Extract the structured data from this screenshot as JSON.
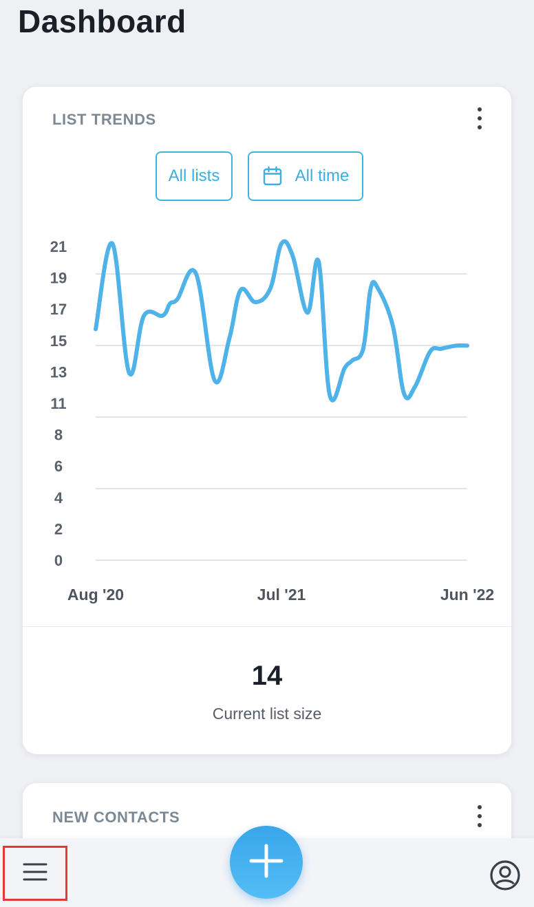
{
  "header": {
    "title": "Dashboard"
  },
  "list_trends": {
    "title": "LIST TRENDS",
    "filters": {
      "lists_label": "All lists",
      "time_label": "All time"
    },
    "stat": {
      "value": "14",
      "label": "Current list size"
    },
    "chart_data": {
      "type": "line",
      "line_color": "#4fb3ea",
      "grid": true,
      "y_tick_labels": [
        "21",
        "19",
        "17",
        "15",
        "13",
        "11",
        "8",
        "6",
        "4",
        "2",
        "0"
      ],
      "x_tick_labels": [
        "Aug '20",
        "Jul '21",
        "Jun '22"
      ],
      "ylim": [
        0,
        21
      ],
      "series": [
        {
          "x": [
            0,
            0.045,
            0.09,
            0.13,
            0.18,
            0.2,
            0.22,
            0.27,
            0.32,
            0.36,
            0.39,
            0.43,
            0.47,
            0.5,
            0.53,
            0.57,
            0.6,
            0.63,
            0.67,
            0.69,
            0.72,
            0.74,
            0.76,
            0.8,
            0.83,
            0.86,
            0.9,
            0.93,
            0.97,
            1.0
          ],
          "values": [
            15.3,
            21,
            12.4,
            16.2,
            16.2,
            17,
            17.3,
            19,
            11.9,
            14.7,
            17.9,
            17.1,
            18,
            21,
            20.2,
            16.4,
            19.8,
            10.9,
            12.7,
            13.2,
            14,
            18,
            18,
            15.5,
            11,
            11.5,
            13.8,
            14,
            14.2,
            14.2
          ]
        }
      ]
    }
  },
  "new_contacts": {
    "title": "NEW CONTACTS"
  },
  "icons": {
    "menu": "menu-icon",
    "add": "plus-icon",
    "account": "account-circle-icon",
    "calendar": "calendar-icon",
    "more": "more-vertical-icon"
  }
}
